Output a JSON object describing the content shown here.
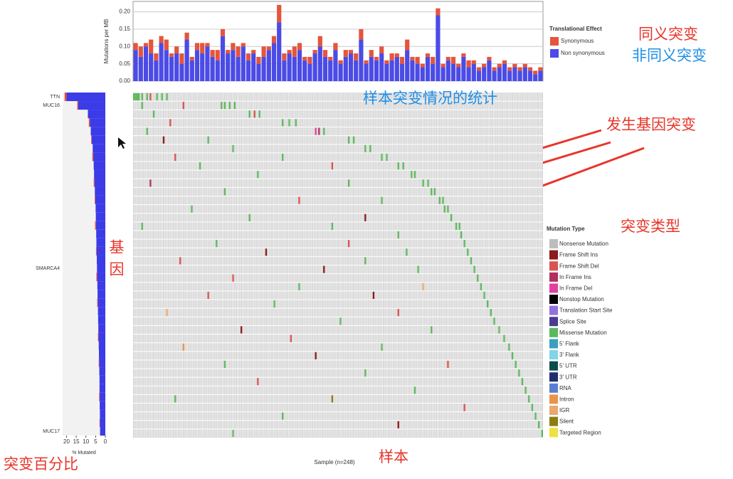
{
  "chart_data": [
    {
      "type": "stacked-bar",
      "ylabel": "Mutations per MB",
      "legend_title": "Translational Effect",
      "ylim": [
        0,
        0.23
      ],
      "yticks": [
        {
          "value": 0,
          "label": "0.00"
        },
        0.05,
        {
          "value": 0.1,
          "label": "0.10"
        },
        0.15,
        {
          "value": 0.2,
          "label": "0.20"
        }
      ],
      "grid": true,
      "series": [
        {
          "name": "Non synonymous",
          "color": "#4b4be6",
          "values": [
            0.09,
            0.07,
            0.1,
            0.08,
            0.06,
            0.11,
            0.09,
            0.07,
            0.08,
            0.05,
            0.12,
            0.06,
            0.09,
            0.08,
            0.1,
            0.07,
            0.06,
            0.13,
            0.08,
            0.09,
            0.07,
            0.1,
            0.06,
            0.08,
            0.05,
            0.07,
            0.09,
            0.11,
            0.17,
            0.06,
            0.08,
            0.07,
            0.09,
            0.06,
            0.05,
            0.08,
            0.1,
            0.07,
            0.06,
            0.09,
            0.05,
            0.07,
            0.08,
            0.06,
            0.12,
            0.05,
            0.07,
            0.06,
            0.08,
            0.05,
            0.06,
            0.07,
            0.05,
            0.09,
            0.06,
            0.05,
            0.04,
            0.07,
            0.05,
            0.19,
            0.04,
            0.06,
            0.05,
            0.04,
            0.07,
            0.04,
            0.05,
            0.03,
            0.04,
            0.06,
            0.03,
            0.04,
            0.05,
            0.03,
            0.04,
            0.03,
            0.04,
            0.03,
            0.02,
            0.03
          ]
        },
        {
          "name": "Synonymous",
          "color": "#e4553c",
          "values": [
            0.02,
            0.03,
            0.01,
            0.04,
            0.02,
            0.02,
            0.03,
            0.01,
            0.02,
            0.03,
            0.02,
            0.01,
            0.02,
            0.03,
            0.01,
            0.02,
            0.03,
            0.02,
            0.01,
            0.02,
            0.03,
            0.01,
            0.02,
            0.01,
            0.02,
            0.03,
            0.01,
            0.02,
            0.05,
            0.02,
            0.01,
            0.03,
            0.02,
            0.01,
            0.02,
            0.01,
            0.03,
            0.02,
            0.01,
            0.02,
            0.01,
            0.02,
            0.01,
            0.02,
            0.03,
            0.01,
            0.02,
            0.01,
            0.02,
            0.01,
            0.02,
            0.01,
            0.02,
            0.03,
            0.01,
            0.02,
            0.01,
            0.01,
            0.02,
            0.02,
            0.01,
            0.01,
            0.02,
            0.01,
            0.01,
            0.02,
            0.01,
            0.01,
            0.01,
            0.01,
            0.01,
            0.01,
            0.01,
            0.01,
            0.01,
            0.01,
            0.01,
            0.01,
            0.01,
            0.01
          ]
        }
      ]
    },
    {
      "type": "hbar",
      "xlabel": "% Mutated",
      "xlim": [
        22,
        0
      ],
      "xticks": [
        20,
        15,
        10,
        5,
        0
      ],
      "categories": [
        "TTN",
        "MUC16",
        null,
        null,
        null,
        null,
        null,
        null,
        null,
        null,
        null,
        null,
        null,
        null,
        null,
        null,
        null,
        null,
        null,
        null,
        "SMARCA4",
        null,
        null,
        null,
        null,
        null,
        null,
        null,
        null,
        null,
        null,
        null,
        null,
        null,
        null,
        null,
        null,
        null,
        null,
        "MUC17"
      ],
      "series": [
        {
          "color": "#3b3be8",
          "values": [
            20,
            14,
            9,
            8,
            7.5,
            7,
            6.5,
            6.2,
            6,
            5.8,
            5.6,
            5.4,
            5.2,
            5,
            4.9,
            4.8,
            4.7,
            4.6,
            4.5,
            4.4,
            4.3,
            4.2,
            4.1,
            4,
            3.9,
            3.8,
            3.7,
            3.6,
            3.5,
            3.4,
            3.3,
            3.2,
            3.1,
            3,
            3,
            2.9,
            2.9,
            2.8,
            2.8,
            2.7
          ]
        },
        {
          "color": "#e4553c",
          "values": [
            1,
            0.5,
            0,
            0.5,
            0,
            0.3,
            0,
            0.5,
            0,
            0,
            0.4,
            0,
            0.3,
            0,
            0,
            0.5,
            0,
            0,
            0.3,
            0,
            0,
            0.4,
            0,
            0,
            0.3,
            0,
            0,
            0,
            0.3,
            0,
            0,
            0.2,
            0,
            0,
            0,
            0.3,
            0,
            0,
            0.2,
            0
          ]
        }
      ]
    },
    {
      "type": "oncoplot",
      "xlabel": "Sample (n=248)",
      "legend_title": "Mutation Type",
      "xlim": [
        0,
        248
      ],
      "ylim": [
        0,
        40
      ],
      "types": [
        {
          "name": "Nonsense Mutation",
          "color": "#bdbdbd"
        },
        {
          "name": "Frame Shift Ins",
          "color": "#8b1a1a"
        },
        {
          "name": "Frame Shift Del",
          "color": "#d9534f"
        },
        {
          "name": "In Frame Ins",
          "color": "#b03060"
        },
        {
          "name": "In Frame Del",
          "color": "#e040a0"
        },
        {
          "name": "Nonstop Mutation",
          "color": "#000000"
        },
        {
          "name": "Translation Start Site",
          "color": "#9370db"
        },
        {
          "name": "Splice Site",
          "color": "#4b3b8f"
        },
        {
          "name": "Missense Mutation",
          "color": "#5cb85c"
        },
        {
          "name": "5' Flank",
          "color": "#3a9fbf"
        },
        {
          "name": "3' Flank",
          "color": "#7fd6e8"
        },
        {
          "name": "5' UTR",
          "color": "#0b4d4d"
        },
        {
          "name": "3' UTR",
          "color": "#1f2f6f"
        },
        {
          "name": "RNA",
          "color": "#5a7fd0"
        },
        {
          "name": "Intron",
          "color": "#e8944a"
        },
        {
          "name": "IGR",
          "color": "#e8a870"
        },
        {
          "name": "Silent",
          "color": "#8b7d10"
        },
        {
          "name": "Targeted Region",
          "color": "#f0e040"
        }
      ],
      "cells": [
        [
          0,
          0,
          8
        ],
        [
          0,
          1,
          8
        ],
        [
          0,
          2,
          8
        ],
        [
          0,
          3,
          8
        ],
        [
          0,
          5,
          8
        ],
        [
          0,
          8,
          8
        ],
        [
          0,
          10,
          2
        ],
        [
          0,
          14,
          8
        ],
        [
          0,
          17,
          8
        ],
        [
          0,
          20,
          8
        ],
        [
          1,
          53,
          8
        ],
        [
          1,
          55,
          8
        ],
        [
          1,
          58,
          8
        ],
        [
          1,
          61,
          8
        ],
        [
          1,
          5,
          8
        ],
        [
          1,
          30,
          2
        ],
        [
          2,
          70,
          8
        ],
        [
          2,
          73,
          2
        ],
        [
          2,
          76,
          8
        ],
        [
          2,
          12,
          8
        ],
        [
          3,
          90,
          8
        ],
        [
          3,
          94,
          8
        ],
        [
          3,
          98,
          8
        ],
        [
          3,
          22,
          2
        ],
        [
          4,
          110,
          4
        ],
        [
          4,
          112,
          3
        ],
        [
          4,
          115,
          8
        ],
        [
          4,
          8,
          8
        ],
        [
          5,
          130,
          8
        ],
        [
          5,
          133,
          8
        ],
        [
          5,
          18,
          1
        ],
        [
          5,
          45,
          8
        ],
        [
          6,
          140,
          8
        ],
        [
          6,
          143,
          8
        ],
        [
          6,
          60,
          8
        ],
        [
          7,
          150,
          8
        ],
        [
          7,
          153,
          8
        ],
        [
          7,
          25,
          2
        ],
        [
          7,
          90,
          8
        ],
        [
          8,
          160,
          8
        ],
        [
          8,
          163,
          8
        ],
        [
          8,
          40,
          8
        ],
        [
          8,
          120,
          2
        ],
        [
          9,
          168,
          8
        ],
        [
          9,
          170,
          8
        ],
        [
          9,
          75,
          8
        ],
        [
          10,
          175,
          8
        ],
        [
          10,
          178,
          8
        ],
        [
          10,
          10,
          3
        ],
        [
          10,
          130,
          8
        ],
        [
          11,
          180,
          8
        ],
        [
          11,
          182,
          8
        ],
        [
          11,
          55,
          8
        ],
        [
          12,
          185,
          8
        ],
        [
          12,
          187,
          8
        ],
        [
          12,
          100,
          2
        ],
        [
          12,
          150,
          8
        ],
        [
          13,
          188,
          8
        ],
        [
          13,
          190,
          8
        ],
        [
          13,
          35,
          8
        ],
        [
          14,
          192,
          8
        ],
        [
          14,
          140,
          1
        ],
        [
          14,
          70,
          8
        ],
        [
          15,
          195,
          8
        ],
        [
          15,
          197,
          8
        ],
        [
          15,
          120,
          8
        ],
        [
          15,
          5,
          8
        ],
        [
          16,
          198,
          8
        ],
        [
          16,
          160,
          8
        ],
        [
          17,
          200,
          8
        ],
        [
          17,
          130,
          2
        ],
        [
          17,
          50,
          8
        ],
        [
          18,
          202,
          8
        ],
        [
          18,
          80,
          1
        ],
        [
          18,
          165,
          8
        ],
        [
          19,
          204,
          8
        ],
        [
          19,
          28,
          2
        ],
        [
          19,
          140,
          8
        ],
        [
          20,
          206,
          8
        ],
        [
          20,
          115,
          1
        ],
        [
          20,
          172,
          8
        ],
        [
          21,
          208,
          8
        ],
        [
          21,
          60,
          2
        ],
        [
          22,
          210,
          8
        ],
        [
          22,
          100,
          8
        ],
        [
          22,
          175,
          15
        ],
        [
          23,
          212,
          8
        ],
        [
          23,
          45,
          2
        ],
        [
          23,
          145,
          1
        ],
        [
          24,
          214,
          8
        ],
        [
          24,
          85,
          8
        ],
        [
          25,
          216,
          8
        ],
        [
          25,
          160,
          2
        ],
        [
          25,
          20,
          15
        ],
        [
          26,
          218,
          8
        ],
        [
          26,
          125,
          8
        ],
        [
          27,
          221,
          8
        ],
        [
          27,
          65,
          1
        ],
        [
          27,
          180,
          8
        ],
        [
          28,
          224,
          8
        ],
        [
          28,
          95,
          2
        ],
        [
          29,
          227,
          8
        ],
        [
          29,
          150,
          8
        ],
        [
          29,
          30,
          14
        ],
        [
          30,
          229,
          8
        ],
        [
          30,
          110,
          1
        ],
        [
          31,
          231,
          8
        ],
        [
          31,
          55,
          8
        ],
        [
          31,
          190,
          2
        ],
        [
          32,
          233,
          8
        ],
        [
          32,
          140,
          8
        ],
        [
          33,
          235,
          8
        ],
        [
          33,
          75,
          2
        ],
        [
          34,
          237,
          8
        ],
        [
          34,
          170,
          8
        ],
        [
          35,
          239,
          8
        ],
        [
          35,
          25,
          8
        ],
        [
          35,
          120,
          16
        ],
        [
          36,
          241,
          8
        ],
        [
          36,
          200,
          2
        ],
        [
          37,
          243,
          8
        ],
        [
          37,
          90,
          8
        ],
        [
          38,
          245,
          8
        ],
        [
          38,
          160,
          1
        ],
        [
          39,
          247,
          8
        ],
        [
          39,
          60,
          8
        ]
      ]
    }
  ],
  "annotations": [
    "同义突变",
    "非同义突变",
    "样本突变情况的统计",
    "发生基因突变",
    "突变类型",
    "基因",
    "突变百分比",
    "样本"
  ]
}
